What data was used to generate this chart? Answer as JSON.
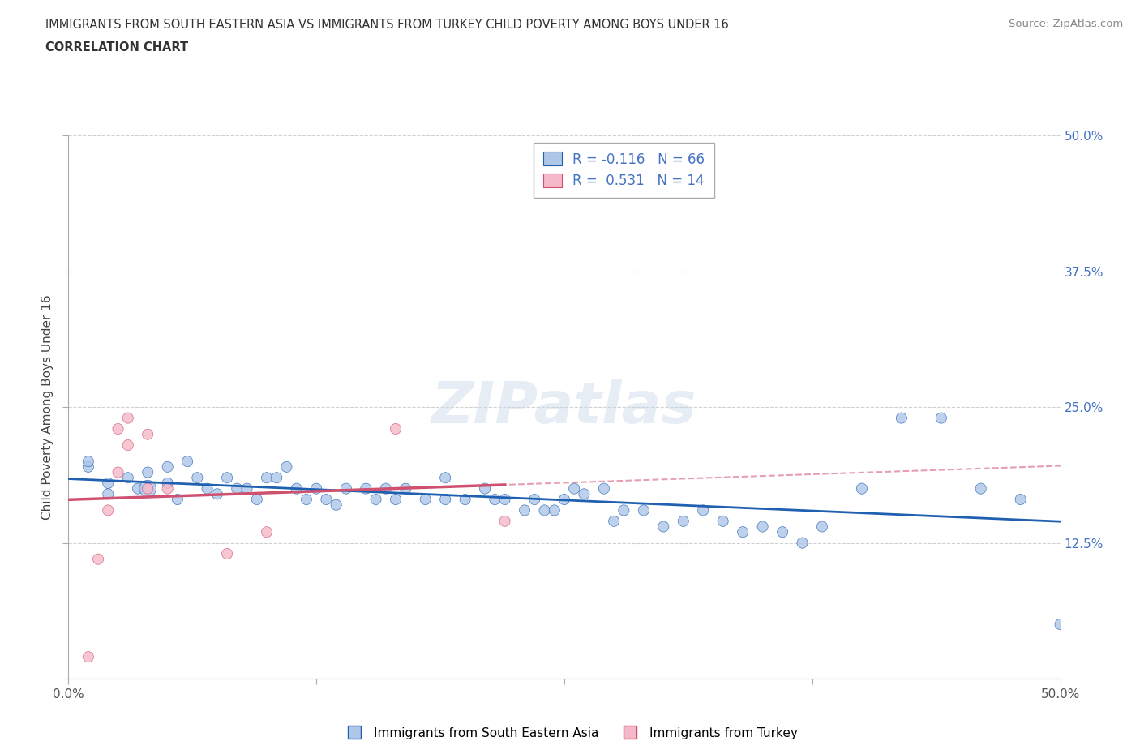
{
  "title_line1": "IMMIGRANTS FROM SOUTH EASTERN ASIA VS IMMIGRANTS FROM TURKEY CHILD POVERTY AMONG BOYS UNDER 16",
  "title_line2": "CORRELATION CHART",
  "source_text": "Source: ZipAtlas.com",
  "ylabel": "Child Poverty Among Boys Under 16",
  "xlim": [
    0.0,
    0.5
  ],
  "ylim": [
    0.0,
    0.5
  ],
  "r_blue": -0.116,
  "n_blue": 66,
  "r_pink": 0.531,
  "n_pink": 14,
  "blue_color": "#aec6e8",
  "pink_color": "#f4b8c8",
  "blue_line_color": "#2060b0",
  "pink_line_color": "#d05070",
  "grid_color": "#d0d0d0",
  "watermark": "ZIPatlas",
  "legend_label_blue": "Immigrants from South Eastern Asia",
  "legend_label_pink": "Immigrants from Turkey",
  "blue_scatter_x": [
    0.01,
    0.01,
    0.02,
    0.02,
    0.03,
    0.035,
    0.04,
    0.04,
    0.05,
    0.05,
    0.055,
    0.06,
    0.065,
    0.07,
    0.075,
    0.08,
    0.085,
    0.09,
    0.095,
    0.1,
    0.105,
    0.11,
    0.115,
    0.12,
    0.125,
    0.13,
    0.135,
    0.14,
    0.15,
    0.155,
    0.16,
    0.165,
    0.17,
    0.18,
    0.19,
    0.19,
    0.2,
    0.21,
    0.215,
    0.22,
    0.23,
    0.235,
    0.24,
    0.245,
    0.25,
    0.255,
    0.26,
    0.27,
    0.275,
    0.28,
    0.29,
    0.3,
    0.31,
    0.32,
    0.33,
    0.34,
    0.35,
    0.36,
    0.37,
    0.38,
    0.4,
    0.42,
    0.44,
    0.46,
    0.48,
    0.5
  ],
  "blue_scatter_y": [
    0.195,
    0.2,
    0.18,
    0.17,
    0.185,
    0.175,
    0.19,
    0.175,
    0.195,
    0.18,
    0.165,
    0.2,
    0.185,
    0.175,
    0.17,
    0.185,
    0.175,
    0.175,
    0.165,
    0.185,
    0.185,
    0.195,
    0.175,
    0.165,
    0.175,
    0.165,
    0.16,
    0.175,
    0.175,
    0.165,
    0.175,
    0.165,
    0.175,
    0.165,
    0.185,
    0.165,
    0.165,
    0.175,
    0.165,
    0.165,
    0.155,
    0.165,
    0.155,
    0.155,
    0.165,
    0.175,
    0.17,
    0.175,
    0.145,
    0.155,
    0.155,
    0.14,
    0.145,
    0.155,
    0.145,
    0.135,
    0.14,
    0.135,
    0.125,
    0.14,
    0.175,
    0.24,
    0.24,
    0.175,
    0.165,
    0.05
  ],
  "blue_scatter_sizes": [
    90,
    90,
    90,
    90,
    90,
    90,
    90,
    220,
    90,
    90,
    90,
    90,
    90,
    90,
    90,
    90,
    90,
    90,
    90,
    90,
    90,
    90,
    90,
    90,
    90,
    90,
    90,
    90,
    90,
    90,
    90,
    90,
    90,
    90,
    90,
    90,
    90,
    90,
    90,
    90,
    90,
    90,
    90,
    90,
    90,
    90,
    90,
    90,
    90,
    90,
    90,
    90,
    90,
    90,
    90,
    90,
    90,
    90,
    90,
    90,
    90,
    90,
    90,
    90,
    90,
    90
  ],
  "pink_scatter_x": [
    0.01,
    0.015,
    0.02,
    0.025,
    0.025,
    0.03,
    0.03,
    0.04,
    0.04,
    0.05,
    0.08,
    0.1,
    0.165,
    0.22
  ],
  "pink_scatter_y": [
    0.02,
    0.11,
    0.155,
    0.19,
    0.23,
    0.215,
    0.24,
    0.175,
    0.225,
    0.175,
    0.115,
    0.135,
    0.23,
    0.145
  ],
  "pink_scatter_sizes": [
    90,
    90,
    90,
    90,
    90,
    90,
    90,
    90,
    90,
    90,
    90,
    90,
    90,
    90
  ]
}
